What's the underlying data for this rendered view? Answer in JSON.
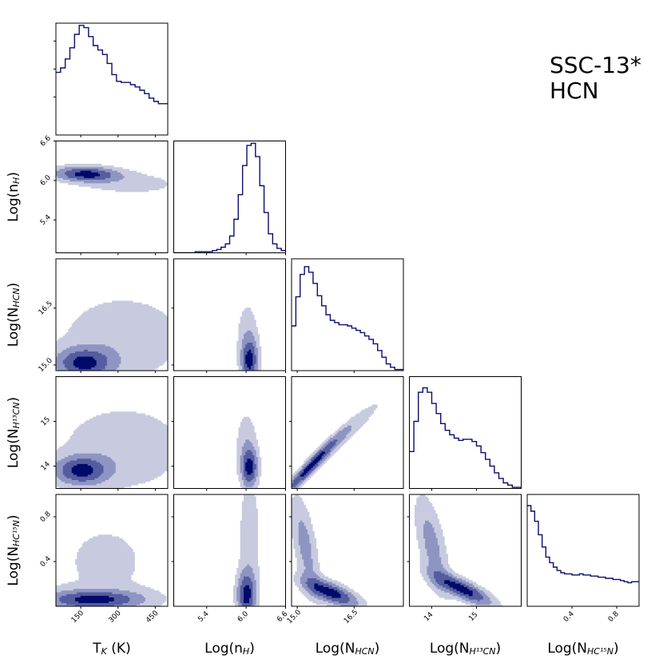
{
  "chart_data": {
    "type": "corner",
    "title_lines": [
      "SSC-13*",
      "HCN"
    ],
    "line_color": "#0a0f6e",
    "fill_colors": [
      "#c8cbdf",
      "#8f95c2",
      "#555da0",
      "#000a6b"
    ],
    "parameters": [
      {
        "key": "tk",
        "label_main": "T",
        "label_sub": "K",
        "label_tail": " (K)",
        "ticks": [
          "150",
          "300",
          "450"
        ],
        "tick_values": [
          150,
          300,
          450
        ],
        "range": [
          50,
          500
        ]
      },
      {
        "key": "nh",
        "label_main": "Log(n",
        "label_sub": "H",
        "label_tail": ")",
        "ticks": [
          "5.4",
          "6.0",
          "6.6"
        ],
        "tick_values": [
          5.4,
          6.0,
          6.6
        ],
        "range": [
          4.9,
          6.6
        ]
      },
      {
        "key": "nhcn",
        "label_main": "Log(N",
        "label_sub": "HCN",
        "label_tail": ")",
        "ticks": [
          "15.0",
          "16.5"
        ],
        "tick_values": [
          15.0,
          16.5
        ],
        "range": [
          14.85,
          17.8
        ]
      },
      {
        "key": "nh13cn",
        "label_main": "Log(N",
        "label_sub": "H¹³CN",
        "label_tail": ")",
        "ticks": [
          "14",
          "15"
        ],
        "tick_values": [
          14,
          15
        ],
        "range": [
          13.5,
          16.0
        ]
      },
      {
        "key": "nhc15n",
        "label_main": "Log(N",
        "label_sub": "HC¹⁵N",
        "label_tail": ")",
        "ticks": [
          "0.4",
          "0.8"
        ],
        "tick_values": [
          0.4,
          0.8
        ],
        "range": [
          0.0,
          1.0
        ]
      }
    ],
    "histograms": {
      "tk": [
        0.56,
        0.6,
        0.68,
        0.78,
        0.9,
        0.98,
        0.96,
        0.88,
        0.8,
        0.76,
        0.72,
        0.64,
        0.54,
        0.48,
        0.47,
        0.47,
        0.45,
        0.43,
        0.4,
        0.37,
        0.33,
        0.3,
        0.28,
        0.28
      ],
      "nh": [
        0.0,
        0.0,
        0.0,
        0.0,
        0.0,
        0.01,
        0.01,
        0.01,
        0.01,
        0.02,
        0.03,
        0.05,
        0.08,
        0.15,
        0.3,
        0.52,
        0.78,
        0.96,
        0.98,
        0.86,
        0.6,
        0.36,
        0.17,
        0.08,
        0.04,
        0.02
      ],
      "nhcn": [
        0.4,
        0.66,
        0.86,
        0.93,
        0.88,
        0.78,
        0.67,
        0.58,
        0.5,
        0.45,
        0.43,
        0.41,
        0.41,
        0.4,
        0.38,
        0.36,
        0.34,
        0.31,
        0.28,
        0.24,
        0.18,
        0.12,
        0.06,
        0.03,
        0.01,
        0.01
      ],
      "nh13cn": [
        0.33,
        0.6,
        0.86,
        0.9,
        0.86,
        0.76,
        0.67,
        0.58,
        0.52,
        0.48,
        0.45,
        0.43,
        0.44,
        0.44,
        0.42,
        0.38,
        0.32,
        0.26,
        0.2,
        0.14,
        0.09,
        0.05,
        0.03,
        0.01,
        0.01
      ],
      "nhc15n": [
        0.9,
        0.85,
        0.76,
        0.64,
        0.53,
        0.44,
        0.39,
        0.35,
        0.32,
        0.3,
        0.29,
        0.29,
        0.28,
        0.28,
        0.29,
        0.28,
        0.28,
        0.27,
        0.27,
        0.26,
        0.26,
        0.25,
        0.25,
        0.24,
        0.24,
        0.23,
        0.22,
        0.21,
        0.22,
        0.22
      ]
    },
    "contour_levels": [
      "outer",
      "middle",
      "inner",
      "core"
    ],
    "kde_pairs": [
      {
        "x": "tk",
        "y": "nh",
        "peaks": [
          {
            "mx": 170,
            "my": 6.1,
            "sx": 90,
            "sy": 0.08,
            "rho": -0.1,
            "w": 1.0
          },
          {
            "mx": 360,
            "my": 5.95,
            "sx": 160,
            "sy": 0.14,
            "rho": 0.0,
            "w": 0.25
          }
        ]
      },
      {
        "x": "tk",
        "y": "nhcn",
        "peaks": [
          {
            "mx": 160,
            "my": 15.05,
            "sx": 80,
            "sy": 0.28,
            "rho": 0.0,
            "w": 1.0
          },
          {
            "mx": 320,
            "my": 15.7,
            "sx": 200,
            "sy": 0.9,
            "rho": 0.0,
            "w": 0.35
          }
        ]
      },
      {
        "x": "tk",
        "y": "nh13cn",
        "peaks": [
          {
            "mx": 150,
            "my": 13.9,
            "sx": 75,
            "sy": 0.22,
            "rho": 0.0,
            "w": 1.0
          },
          {
            "mx": 320,
            "my": 14.4,
            "sx": 200,
            "sy": 0.75,
            "rho": 0.0,
            "w": 0.35
          }
        ]
      },
      {
        "x": "tk",
        "y": "nhc15n",
        "peaks": [
          {
            "mx": 200,
            "my": 0.06,
            "sx": 140,
            "sy": 0.06,
            "rho": 0.0,
            "w": 1.0
          },
          {
            "mx": 250,
            "my": 0.4,
            "sx": 200,
            "sy": 0.4,
            "rho": 0.0,
            "w": 0.22
          }
        ]
      },
      {
        "x": "nh",
        "y": "nhcn",
        "peaks": [
          {
            "mx": 6.05,
            "my": 15.1,
            "sx": 0.09,
            "sy": 0.4,
            "rho": 0.0,
            "w": 1.0
          },
          {
            "mx": 6.02,
            "my": 15.9,
            "sx": 0.12,
            "sy": 0.6,
            "rho": 0.0,
            "w": 0.3
          }
        ]
      },
      {
        "x": "nh",
        "y": "nh13cn",
        "peaks": [
          {
            "mx": 6.05,
            "my": 13.95,
            "sx": 0.09,
            "sy": 0.32,
            "rho": 0.0,
            "w": 1.0
          },
          {
            "mx": 6.0,
            "my": 14.6,
            "sx": 0.12,
            "sy": 0.5,
            "rho": 0.0,
            "w": 0.3
          }
        ]
      },
      {
        "x": "nh",
        "y": "nhc15n",
        "peaks": [
          {
            "mx": 6.0,
            "my": 0.1,
            "sx": 0.1,
            "sy": 0.14,
            "rho": 0.0,
            "w": 1.0
          },
          {
            "mx": 6.05,
            "my": 0.6,
            "sx": 0.12,
            "sy": 0.45,
            "rho": 0.0,
            "w": 0.35
          }
        ]
      },
      {
        "x": "nhcn",
        "y": "nh13cn",
        "peaks": [
          {
            "mx": 15.3,
            "my": 13.95,
            "sx": 0.55,
            "sy": 0.5,
            "rho": 0.97,
            "w": 1.0
          },
          {
            "mx": 16.3,
            "my": 14.75,
            "sx": 0.7,
            "sy": 0.55,
            "rho": 0.96,
            "w": 0.35
          }
        ]
      },
      {
        "x": "nhcn",
        "y": "nhc15n",
        "peaks": [
          {
            "mx": 15.9,
            "my": 0.12,
            "sx": 0.5,
            "sy": 0.09,
            "rho": -0.7,
            "w": 1.0
          },
          {
            "mx": 15.2,
            "my": 0.55,
            "sx": 0.25,
            "sy": 0.3,
            "rho": -0.6,
            "w": 0.5
          }
        ]
      },
      {
        "x": "nh13cn",
        "y": "nhc15n",
        "peaks": [
          {
            "mx": 14.7,
            "my": 0.15,
            "sx": 0.45,
            "sy": 0.1,
            "rho": -0.8,
            "w": 1.0
          },
          {
            "mx": 14.0,
            "my": 0.55,
            "sx": 0.25,
            "sy": 0.3,
            "rho": -0.6,
            "w": 0.5
          }
        ]
      }
    ]
  }
}
